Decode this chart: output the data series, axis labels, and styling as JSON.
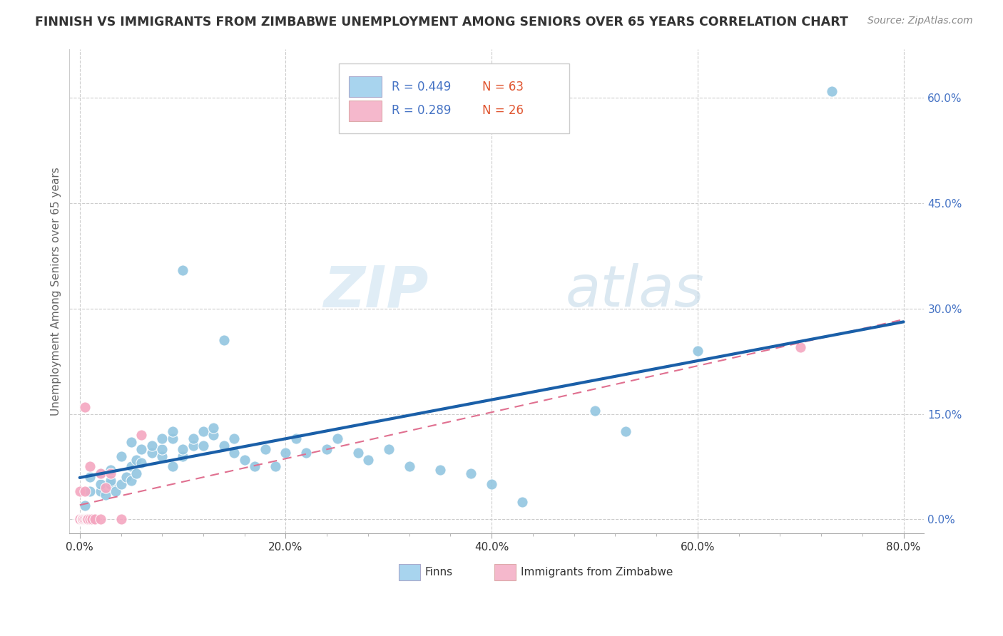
{
  "title": "FINNISH VS IMMIGRANTS FROM ZIMBABWE UNEMPLOYMENT AMONG SENIORS OVER 65 YEARS CORRELATION CHART",
  "source": "Source: ZipAtlas.com",
  "ylabel": "Unemployment Among Seniors over 65 years",
  "xlim": [
    -0.01,
    0.82
  ],
  "ylim": [
    -0.02,
    0.67
  ],
  "xticks": [
    0.0,
    0.2,
    0.4,
    0.6,
    0.8
  ],
  "xticklabels": [
    "0.0%",
    "20.0%",
    "40.0%",
    "60.0%",
    "80.0%"
  ],
  "ytick_positions": [
    0.0,
    0.15,
    0.3,
    0.45,
    0.6
  ],
  "yticklabels_right": [
    "0.0%",
    "15.0%",
    "30.0%",
    "45.0%",
    "60.0%"
  ],
  "finns_R": 0.449,
  "finns_N": 63,
  "zimbabwe_R": 0.289,
  "zimbabwe_N": 26,
  "finns_color": "#93c6e0",
  "zimbabwe_color": "#f4a6c0",
  "finns_line_color": "#1a5fa8",
  "zimbabwe_line_color": "#e07090",
  "grid_color": "#cccccc",
  "watermark_zip": "ZIP",
  "watermark_atlas": "atlas",
  "finns_x": [
    0.005,
    0.01,
    0.01,
    0.02,
    0.02,
    0.02,
    0.025,
    0.03,
    0.03,
    0.03,
    0.035,
    0.04,
    0.04,
    0.045,
    0.05,
    0.05,
    0.05,
    0.055,
    0.055,
    0.06,
    0.06,
    0.07,
    0.07,
    0.08,
    0.08,
    0.08,
    0.09,
    0.09,
    0.09,
    0.1,
    0.1,
    0.1,
    0.11,
    0.11,
    0.12,
    0.12,
    0.13,
    0.13,
    0.14,
    0.14,
    0.15,
    0.15,
    0.16,
    0.17,
    0.18,
    0.19,
    0.2,
    0.21,
    0.22,
    0.24,
    0.25,
    0.27,
    0.28,
    0.3,
    0.32,
    0.35,
    0.38,
    0.4,
    0.43,
    0.5,
    0.53,
    0.6,
    0.73
  ],
  "finns_y": [
    0.02,
    0.04,
    0.06,
    0.04,
    0.05,
    0.065,
    0.035,
    0.05,
    0.055,
    0.07,
    0.04,
    0.05,
    0.09,
    0.06,
    0.055,
    0.075,
    0.11,
    0.065,
    0.085,
    0.08,
    0.1,
    0.095,
    0.105,
    0.09,
    0.1,
    0.115,
    0.075,
    0.115,
    0.125,
    0.09,
    0.1,
    0.355,
    0.105,
    0.115,
    0.105,
    0.125,
    0.12,
    0.13,
    0.105,
    0.255,
    0.095,
    0.115,
    0.085,
    0.075,
    0.1,
    0.075,
    0.095,
    0.115,
    0.095,
    0.1,
    0.115,
    0.095,
    0.085,
    0.1,
    0.075,
    0.07,
    0.065,
    0.05,
    0.025,
    0.155,
    0.125,
    0.24,
    0.61
  ],
  "zimbabwe_x": [
    0.0,
    0.0,
    0.0,
    0.0,
    0.002,
    0.002,
    0.003,
    0.003,
    0.004,
    0.005,
    0.005,
    0.006,
    0.007,
    0.007,
    0.008,
    0.01,
    0.01,
    0.012,
    0.015,
    0.02,
    0.02,
    0.025,
    0.03,
    0.04,
    0.06,
    0.7
  ],
  "zimbabwe_y": [
    0.0,
    0.0,
    0.0,
    0.04,
    0.0,
    0.0,
    0.0,
    0.0,
    0.0,
    0.04,
    0.16,
    0.0,
    0.0,
    0.0,
    0.0,
    0.0,
    0.075,
    0.0,
    0.0,
    0.0,
    0.065,
    0.045,
    0.065,
    0.0,
    0.12,
    0.245
  ]
}
